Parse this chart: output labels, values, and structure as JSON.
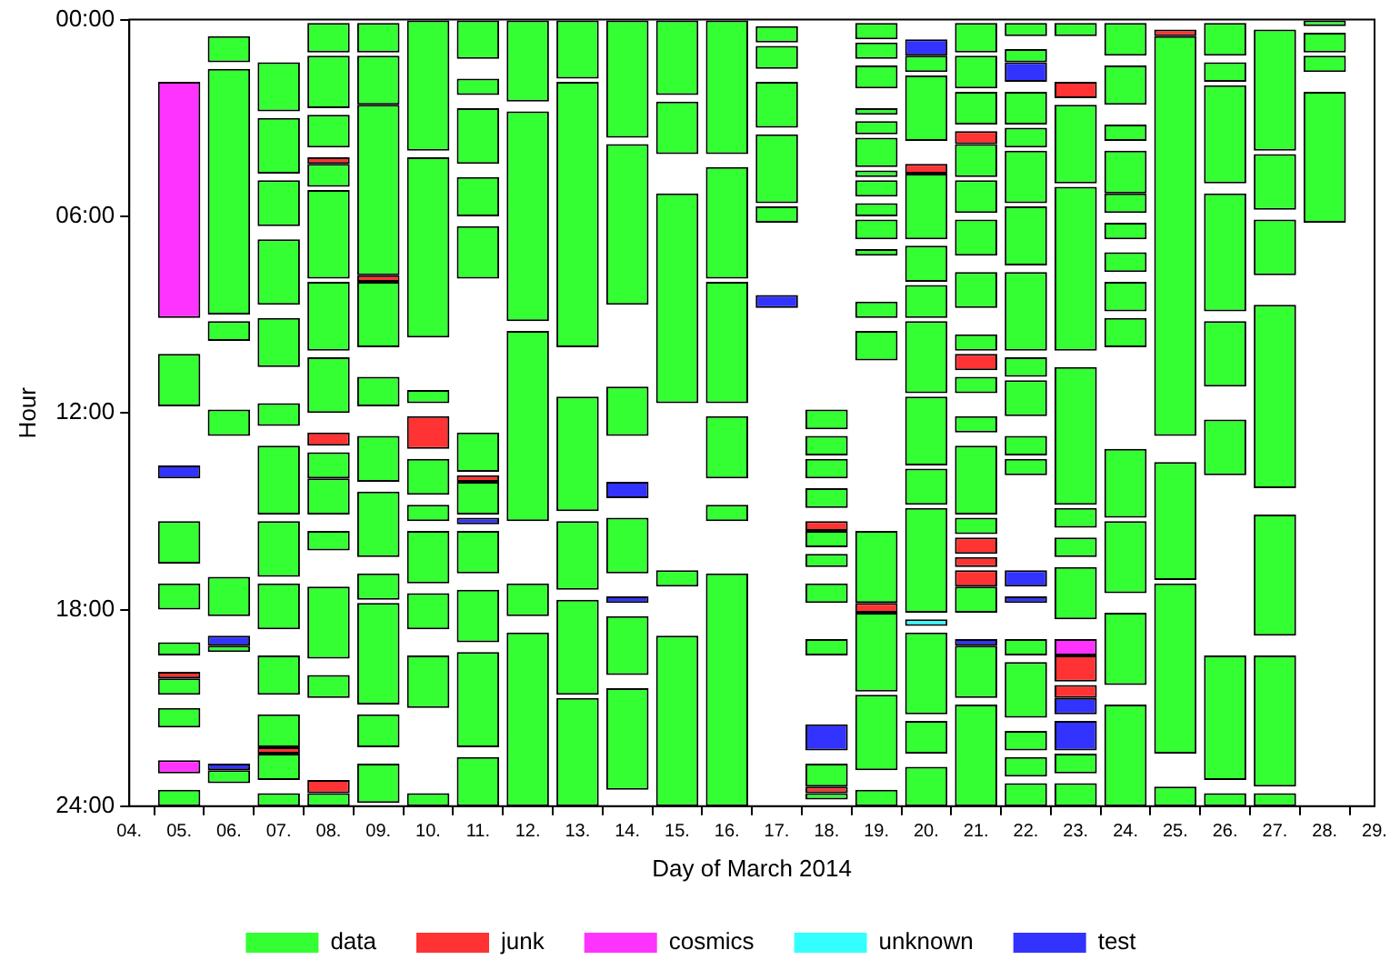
{
  "chart_data": {
    "type": "bar",
    "xlabel": "Day of March 2014",
    "ylabel": "Hour",
    "legend": "bottom",
    "categories": [
      "04.",
      "05.",
      "06.",
      "07.",
      "08.",
      "09.",
      "10.",
      "11.",
      "12.",
      "13.",
      "14.",
      "15.",
      "16.",
      "17.",
      "18.",
      "19.",
      "20.",
      "21.",
      "22.",
      "23.",
      "24.",
      "25.",
      "26.",
      "27.",
      "28.",
      "29."
    ],
    "ylim": [
      24,
      0
    ],
    "yticks": [
      {
        "value": 0,
        "label": "00:00"
      },
      {
        "value": 6,
        "label": "06:00"
      },
      {
        "value": 12,
        "label": "12:00"
      },
      {
        "value": 18,
        "label": "18:00"
      },
      {
        "value": 24,
        "label": "24:00"
      }
    ],
    "series": [
      {
        "name": "data",
        "color": "#33ff33",
        "x": [
          "05.",
          "05.",
          "05.",
          "05.",
          "05.",
          "05.",
          "05.",
          "06.",
          "06.",
          "06.",
          "06.",
          "06.",
          "06.",
          "06.",
          "07.",
          "07.",
          "07.",
          "07.",
          "07.",
          "07.",
          "07.",
          "07.",
          "07.",
          "07.",
          "07.",
          "07.",
          "07.",
          "08.",
          "08.",
          "08.",
          "08.",
          "08.",
          "08.",
          "08.",
          "08.",
          "08.",
          "08.",
          "08.",
          "08.",
          "08.",
          "09.",
          "09.",
          "09.",
          "09.",
          "09.",
          "09.",
          "09.",
          "09.",
          "09.",
          "09.",
          "09.",
          "10.",
          "10.",
          "10.",
          "10.",
          "10.",
          "10.",
          "10.",
          "10.",
          "10.",
          "11.",
          "11.",
          "11.",
          "11.",
          "11.",
          "11.",
          "11.",
          "11.",
          "11.",
          "11.",
          "11.",
          "12.",
          "12.",
          "12.",
          "12.",
          "12.",
          "13.",
          "13.",
          "13.",
          "13.",
          "13.",
          "13.",
          "14.",
          "14.",
          "14.",
          "14.",
          "14.",
          "14.",
          "15.",
          "15.",
          "15.",
          "15.",
          "15.",
          "16.",
          "16.",
          "16.",
          "16.",
          "16.",
          "16.",
          "17.",
          "17.",
          "17.",
          "17.",
          "17.",
          "18.",
          "18.",
          "18.",
          "18.",
          "18.",
          "18.",
          "18.",
          "18.",
          "18.",
          "18.",
          "19.",
          "19.",
          "19.",
          "19.",
          "19.",
          "19.",
          "19.",
          "19.",
          "19.",
          "19.",
          "19.",
          "19.",
          "19.",
          "19.",
          "19.",
          "19.",
          "19.",
          "20.",
          "20.",
          "20.",
          "20.",
          "20.",
          "20.",
          "20.",
          "20.",
          "20.",
          "20.",
          "20.",
          "20.",
          "21.",
          "21.",
          "21.",
          "21.",
          "21.",
          "21.",
          "21.",
          "21.",
          "21.",
          "21.",
          "21.",
          "21.",
          "21.",
          "21.",
          "21.",
          "22.",
          "22.",
          "22.",
          "22.",
          "22.",
          "22.",
          "22.",
          "22.",
          "22.",
          "22.",
          "22.",
          "22.",
          "22.",
          "22.",
          "22.",
          "22.",
          "23.",
          "23.",
          "23.",
          "23.",
          "23.",
          "23.",
          "23.",
          "23.",
          "23.",
          "24.",
          "24.",
          "24.",
          "24.",
          "24.",
          "24.",
          "24.",
          "24.",
          "24.",
          "24.",
          "24.",
          "24.",
          "24.",
          "25.",
          "25.",
          "25.",
          "25.",
          "26.",
          "26.",
          "26.",
          "26.",
          "26.",
          "26.",
          "26.",
          "26.",
          "27.",
          "27.",
          "27.",
          "27.",
          "27.",
          "27.",
          "27.",
          "28.",
          "28.",
          "28.",
          "28."
        ],
        "base": [
          10.2,
          15.3,
          17.2,
          19.0,
          20.1,
          21.0,
          23.5,
          0.5,
          1.5,
          9.2,
          11.9,
          17.0,
          19.1,
          22.9,
          1.3,
          3.0,
          4.9,
          6.7,
          9.1,
          11.7,
          13.0,
          15.3,
          17.2,
          19.4,
          21.2,
          22.4,
          23.6,
          0.1,
          1.1,
          2.9,
          4.4,
          5.2,
          8.0,
          10.3,
          13.2,
          14.0,
          15.6,
          17.3,
          20.0,
          23.6,
          0.1,
          1.1,
          2.6,
          8.0,
          10.9,
          12.7,
          14.4,
          16.9,
          17.8,
          21.2,
          22.7,
          0.0,
          4.2,
          11.3,
          13.4,
          14.8,
          15.6,
          17.5,
          19.4,
          23.6,
          0.0,
          1.8,
          2.7,
          4.8,
          6.3,
          12.6,
          14.1,
          15.6,
          17.4,
          19.3,
          22.5,
          0.0,
          2.8,
          9.5,
          17.2,
          18.7,
          0.0,
          1.9,
          11.5,
          15.3,
          17.7,
          20.7,
          0.0,
          3.8,
          11.2,
          15.2,
          18.2,
          20.4,
          0.0,
          2.5,
          5.3,
          16.8,
          18.8,
          0.0,
          4.5,
          8.0,
          12.1,
          14.8,
          16.9,
          0.2,
          0.8,
          1.9,
          3.5,
          5.7,
          11.9,
          12.7,
          13.4,
          14.3,
          15.6,
          16.3,
          17.2,
          18.9,
          22.7,
          23.6,
          0.1,
          0.7,
          1.4,
          2.7,
          3.1,
          3.6,
          4.6,
          4.9,
          5.6,
          6.1,
          7.0,
          8.6,
          9.5,
          15.6,
          18.1,
          20.6,
          23.5,
          1.1,
          1.7,
          4.7,
          6.9,
          8.1,
          9.2,
          11.5,
          13.7,
          14.9,
          18.7,
          21.4,
          22.8,
          0.1,
          1.1,
          2.2,
          3.8,
          4.9,
          6.1,
          7.7,
          9.6,
          10.9,
          12.1,
          13.0,
          15.2,
          17.3,
          19.1,
          20.9,
          0.1,
          0.9,
          2.2,
          3.3,
          4.0,
          5.7,
          7.7,
          10.3,
          11.0,
          12.7,
          13.4,
          18.9,
          19.6,
          21.7,
          22.5,
          23.3,
          0.1,
          2.6,
          5.1,
          10.6,
          14.9,
          15.8,
          16.7,
          22.4,
          23.3,
          0.1,
          1.4,
          3.2,
          4.0,
          5.3,
          6.2,
          7.1,
          8.0,
          9.1,
          13.1,
          15.3,
          18.1,
          20.9,
          0.5,
          13.5,
          17.2,
          23.4,
          0.1,
          1.3,
          2.0,
          5.3,
          9.2,
          12.2,
          19.4,
          23.6,
          0.3,
          4.1,
          6.1,
          8.7,
          15.1,
          19.4,
          23.6,
          0.0,
          0.4,
          1.1,
          2.2
        ],
        "values": [
          1.6,
          1.3,
          0.8,
          0.4,
          0.5,
          0.6,
          0.5,
          0.8,
          7.5,
          0.6,
          0.8,
          1.2,
          0.2,
          0.4,
          1.5,
          1.7,
          1.4,
          2.0,
          1.5,
          0.7,
          2.1,
          1.7,
          1.4,
          1.2,
          1.0,
          0.8,
          0.4,
          0.9,
          1.6,
          1.0,
          0.7,
          2.7,
          2.1,
          1.7,
          0.8,
          1.1,
          0.6,
          2.2,
          0.7,
          0.4,
          0.9,
          1.5,
          5.2,
          2.0,
          0.9,
          1.4,
          2.0,
          0.8,
          3.1,
          1.0,
          1.2,
          4.0,
          5.5,
          0.4,
          1.1,
          0.5,
          1.6,
          1.1,
          1.6,
          0.4,
          1.2,
          0.5,
          1.7,
          1.2,
          1.6,
          1.2,
          1.0,
          1.3,
          1.6,
          2.9,
          1.5,
          2.5,
          6.4,
          5.8,
          1.0,
          5.3,
          1.8,
          8.1,
          3.5,
          2.1,
          2.9,
          3.3,
          3.6,
          4.9,
          1.5,
          1.7,
          1.8,
          3.1,
          2.3,
          1.6,
          6.4,
          0.5,
          5.2,
          4.1,
          3.4,
          3.7,
          1.9,
          0.5,
          7.1,
          0.5,
          0.7,
          1.4,
          2.1,
          0.5,
          0.6,
          0.6,
          0.6,
          0.6,
          0.5,
          0.4,
          0.6,
          0.5,
          0.7,
          0.2,
          0.5,
          0.5,
          0.7,
          0.2,
          0.4,
          0.9,
          0.2,
          0.5,
          0.4,
          0.6,
          0.2,
          0.5,
          0.9,
          2.2,
          2.4,
          2.3,
          0.5,
          0.5,
          2.0,
          2.0,
          1.1,
          1.0,
          2.2,
          2.1,
          1.1,
          3.2,
          2.5,
          1.0,
          1.2,
          0.9,
          1.0,
          1.0,
          1.0,
          1.0,
          1.1,
          1.1,
          0.5,
          0.5,
          0.5,
          2.1,
          0.5,
          0.8,
          1.6,
          3.1,
          0.4,
          0.4,
          1.0,
          0.6,
          1.6,
          1.8,
          2.4,
          0.6,
          1.1,
          0.6,
          0.5,
          0.5,
          1.7,
          0.6,
          0.6,
          0.7,
          0.4,
          2.4,
          5.0,
          4.2,
          0.6,
          0.6,
          1.6,
          0.6,
          0.7,
          1.0,
          1.2,
          0.5,
          1.3,
          0.6,
          0.5,
          0.6,
          0.9,
          0.9,
          2.1,
          2.2,
          2.2,
          3.1,
          12.2,
          3.6,
          5.2,
          0.6,
          1.0,
          0.6,
          3.0,
          3.6,
          2.0,
          1.7,
          3.8,
          0.4,
          3.7,
          1.7,
          1.7,
          5.6,
          3.7,
          4.0,
          0.4,
          0.2,
          0.6,
          0.5,
          4.0
        ]
      },
      {
        "name": "junk",
        "color": "#ff3333",
        "x": [
          "05.",
          "07.",
          "08.",
          "08.",
          "08.",
          "09.",
          "10.",
          "11.",
          "18.",
          "18.",
          "19.",
          "20.",
          "21.",
          "21.",
          "21.",
          "21.",
          "21.",
          "23.",
          "23.",
          "23.",
          "25."
        ],
        "base": [
          19.9,
          22.2,
          4.2,
          12.6,
          23.2,
          7.8,
          12.1,
          13.9,
          15.3,
          23.4,
          17.8,
          4.4,
          3.4,
          10.2,
          15.8,
          16.4,
          16.8,
          1.9,
          19.4,
          20.3,
          0.3
        ],
        "values": [
          0.2,
          0.2,
          0.2,
          0.4,
          0.4,
          0.2,
          1.0,
          0.2,
          0.3,
          0.2,
          0.3,
          0.3,
          0.4,
          0.5,
          0.5,
          0.3,
          0.5,
          0.5,
          0.8,
          0.4,
          0.2
        ]
      },
      {
        "name": "cosmics",
        "color": "#ff33ff",
        "x": [
          "05.",
          "05.",
          "23."
        ],
        "base": [
          1.9,
          22.6,
          18.9
        ],
        "values": [
          7.2,
          0.4,
          0.5
        ]
      },
      {
        "name": "unknown",
        "color": "#33ffff",
        "x": [
          "20."
        ],
        "base": [
          18.3
        ],
        "values": [
          0.2
        ]
      },
      {
        "name": "test",
        "color": "#3333ff",
        "x": [
          "05.",
          "06.",
          "06.",
          "11.",
          "14.",
          "14.",
          "17.",
          "18.",
          "20.",
          "21.",
          "22.",
          "22.",
          "22.",
          "23.",
          "23."
        ],
        "base": [
          13.6,
          18.8,
          22.7,
          15.2,
          14.1,
          17.6,
          8.4,
          21.5,
          0.6,
          18.9,
          1.3,
          16.8,
          17.6,
          20.7,
          21.4
        ],
        "values": [
          0.4,
          0.3,
          0.2,
          0.2,
          0.5,
          0.2,
          0.4,
          0.8,
          0.5,
          0.2,
          0.6,
          0.5,
          0.2,
          0.5,
          0.9
        ]
      }
    ]
  }
}
